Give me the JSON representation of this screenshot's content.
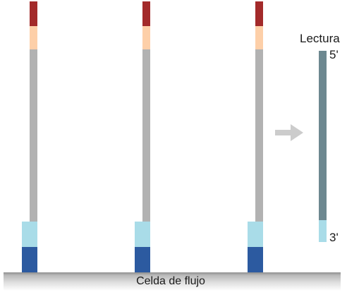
{
  "flow_cell_label": "Celda de flujo",
  "read": {
    "title": "Lectura",
    "five_prime": "5'",
    "three_prime": "3'"
  },
  "strand_count": 3,
  "colors": {
    "red_end": "#a32a2a",
    "peach_segment": "#fdcfa8",
    "gray_insert": "#b2b2b2",
    "light_blue_adapter": "#a9dce8",
    "dark_blue_anchor": "#2c5aa0",
    "read_insert": "#6d8890",
    "arrow": "#cccccc"
  },
  "icons": [
    "right-arrow-icon"
  ]
}
